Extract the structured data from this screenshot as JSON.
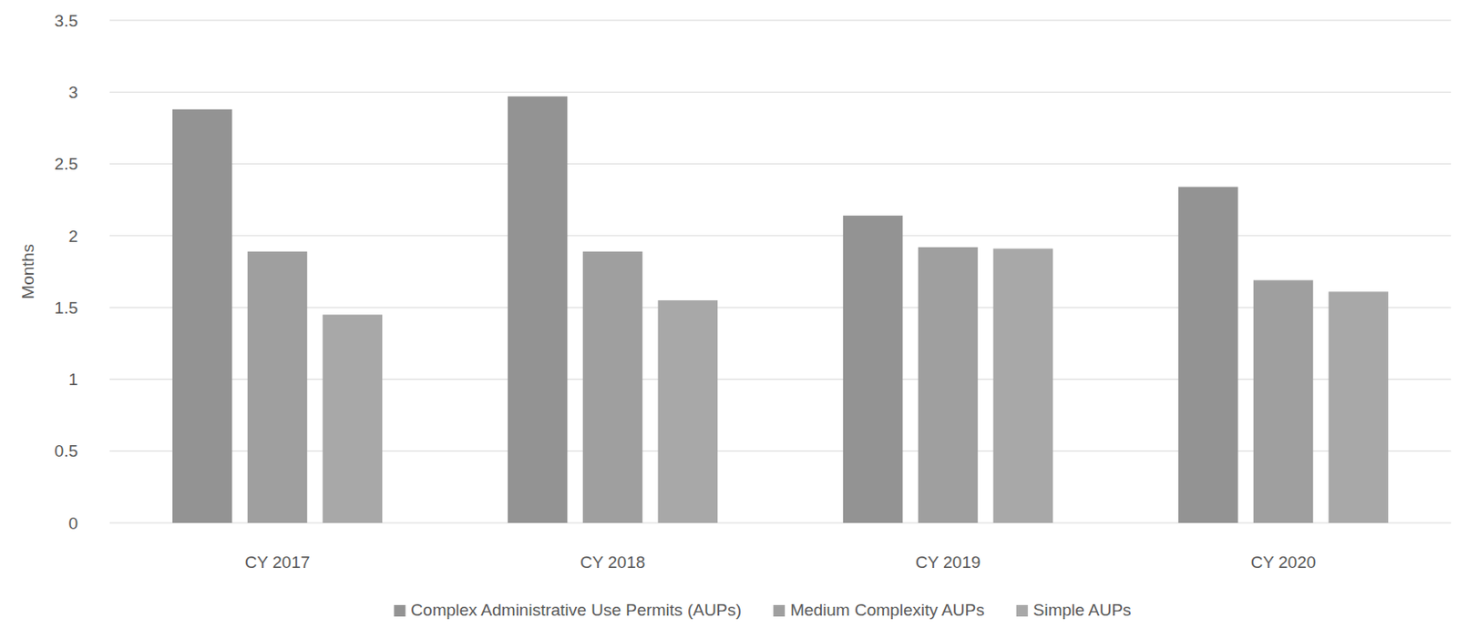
{
  "chart_data": {
    "type": "bar",
    "y_label": "Months",
    "categories": [
      "CY 2017",
      "CY 2018",
      "CY 2019",
      "CY 2020"
    ],
    "series": [
      {
        "name": "Complex Administrative Use Permits (AUPs)",
        "color": "#939393",
        "values": [
          2.88,
          2.97,
          2.14,
          2.34
        ]
      },
      {
        "name": "Medium Complexity AUPs",
        "color": "#9f9f9f",
        "values": [
          1.89,
          1.89,
          1.92,
          1.69
        ]
      },
      {
        "name": "Simple AUPs",
        "color": "#a8a8a8",
        "values": [
          1.45,
          1.55,
          1.91,
          1.61
        ]
      }
    ],
    "ylim": [
      0,
      3.5
    ],
    "yticks": [
      0,
      0.5,
      1,
      1.5,
      2,
      2.5,
      3,
      3.5
    ],
    "grid": true,
    "legend": "bottom"
  }
}
